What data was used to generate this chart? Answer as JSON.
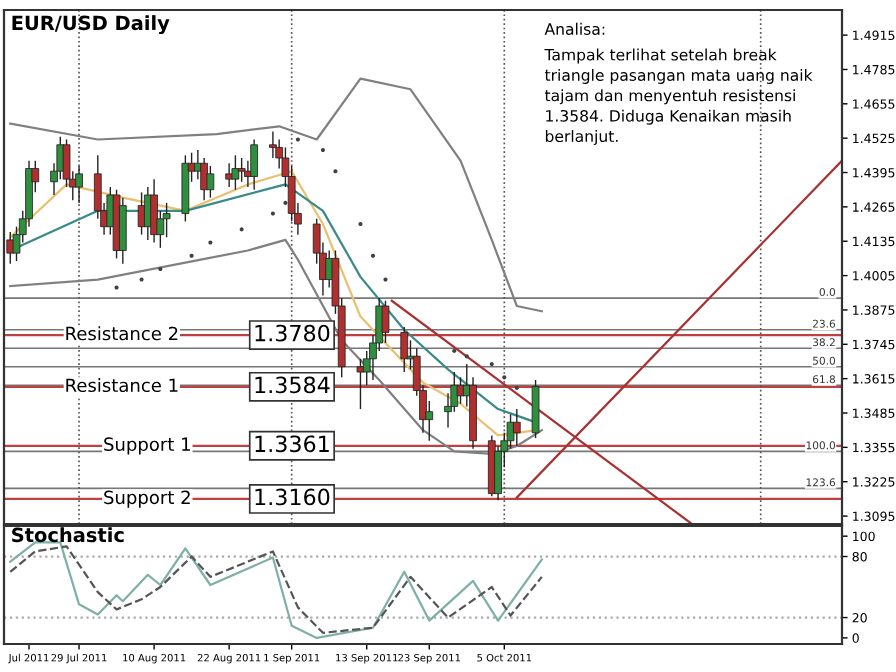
{
  "chart_data": [
    {
      "type": "candlestick",
      "title": "EUR/USD Daily",
      "tick_labels": "y",
      "grid": false,
      "x": [
        "2011-07-18",
        "2011-07-19",
        "2011-07-20",
        "2011-07-21",
        "2011-07-22",
        "2011-07-25",
        "2011-07-26",
        "2011-07-27",
        "2011-07-28",
        "2011-07-29",
        "2011-08-01",
        "2011-08-02",
        "2011-08-03",
        "2011-08-04",
        "2011-08-05",
        "2011-08-08",
        "2011-08-09",
        "2011-08-10",
        "2011-08-11",
        "2011-08-12",
        "2011-08-15",
        "2011-08-16",
        "2011-08-17",
        "2011-08-18",
        "2011-08-19",
        "2011-08-22",
        "2011-08-23",
        "2011-08-24",
        "2011-08-25",
        "2011-08-26",
        "2011-08-29",
        "2011-08-30",
        "2011-08-31",
        "2011-09-01",
        "2011-09-02",
        "2011-09-05",
        "2011-09-06",
        "2011-09-07",
        "2011-09-08",
        "2011-09-09",
        "2011-09-12",
        "2011-09-13",
        "2011-09-14",
        "2011-09-15",
        "2011-09-16",
        "2011-09-19",
        "2011-09-20",
        "2011-09-21",
        "2011-09-22",
        "2011-09-23",
        "2011-09-26",
        "2011-09-27",
        "2011-09-28",
        "2011-09-29",
        "2011-09-30",
        "2011-10-03",
        "2011-10-04",
        "2011-10-05",
        "2011-10-06",
        "2011-10-07",
        "2011-10-10"
      ],
      "ohlc": [
        [
          1.414,
          1.417,
          1.405,
          1.409
        ],
        [
          1.409,
          1.419,
          1.406,
          1.416
        ],
        [
          1.416,
          1.425,
          1.413,
          1.422
        ],
        [
          1.422,
          1.444,
          1.419,
          1.441
        ],
        [
          1.441,
          1.444,
          1.432,
          1.436
        ],
        [
          1.436,
          1.443,
          1.431,
          1.44
        ],
        [
          1.44,
          1.453,
          1.437,
          1.45
        ],
        [
          1.45,
          1.452,
          1.434,
          1.437
        ],
        [
          1.437,
          1.44,
          1.429,
          1.434
        ],
        [
          1.434,
          1.442,
          1.428,
          1.439
        ],
        [
          1.439,
          1.446,
          1.422,
          1.425
        ],
        [
          1.425,
          1.428,
          1.416,
          1.419
        ],
        [
          1.419,
          1.434,
          1.416,
          1.431
        ],
        [
          1.431,
          1.433,
          1.407,
          1.41
        ],
        [
          1.41,
          1.43,
          1.405,
          1.427
        ],
        [
          1.427,
          1.432,
          1.416,
          1.419
        ],
        [
          1.419,
          1.434,
          1.414,
          1.431
        ],
        [
          1.431,
          1.437,
          1.413,
          1.416
        ],
        [
          1.416,
          1.425,
          1.411,
          1.422
        ],
        [
          1.422,
          1.428,
          1.415,
          1.424
        ],
        [
          1.424,
          1.446,
          1.421,
          1.443
        ],
        [
          1.443,
          1.447,
          1.436,
          1.44
        ],
        [
          1.44,
          1.448,
          1.437,
          1.443
        ],
        [
          1.443,
          1.445,
          1.429,
          1.433
        ],
        [
          1.433,
          1.442,
          1.43,
          1.439
        ],
        [
          1.439,
          1.443,
          1.434,
          1.437
        ],
        [
          1.437,
          1.446,
          1.433,
          1.441
        ],
        [
          1.441,
          1.445,
          1.436,
          1.44
        ],
        [
          1.44,
          1.444,
          1.434,
          1.438
        ],
        [
          1.438,
          1.452,
          1.433,
          1.45
        ],
        [
          1.45,
          1.455,
          1.445,
          1.449
        ],
        [
          1.449,
          1.452,
          1.441,
          1.445
        ],
        [
          1.445,
          1.449,
          1.434,
          1.438
        ],
        [
          1.438,
          1.442,
          1.421,
          1.424
        ],
        [
          1.424,
          1.428,
          1.416,
          1.42
        ],
        [
          1.42,
          1.422,
          1.405,
          1.409
        ],
        [
          1.409,
          1.413,
          1.393,
          1.399
        ],
        [
          1.399,
          1.41,
          1.396,
          1.407
        ],
        [
          1.407,
          1.41,
          1.386,
          1.389
        ],
        [
          1.389,
          1.392,
          1.362,
          1.366
        ],
        [
          1.366,
          1.369,
          1.35,
          1.364
        ],
        [
          1.364,
          1.372,
          1.359,
          1.369
        ],
        [
          1.369,
          1.378,
          1.361,
          1.375
        ],
        [
          1.375,
          1.392,
          1.372,
          1.389
        ],
        [
          1.389,
          1.391,
          1.375,
          1.379
        ],
        [
          1.379,
          1.381,
          1.364,
          1.369
        ],
        [
          1.369,
          1.376,
          1.365,
          1.37
        ],
        [
          1.37,
          1.373,
          1.355,
          1.357
        ],
        [
          1.357,
          1.359,
          1.341,
          1.346
        ],
        [
          1.346,
          1.353,
          1.338,
          1.349
        ],
        [
          1.349,
          1.356,
          1.343,
          1.351
        ],
        [
          1.351,
          1.364,
          1.349,
          1.359
        ],
        [
          1.359,
          1.362,
          1.352,
          1.355
        ],
        [
          1.355,
          1.367,
          1.351,
          1.359
        ],
        [
          1.359,
          1.362,
          1.335,
          1.338
        ],
        [
          1.338,
          1.34,
          1.317,
          1.318
        ],
        [
          1.318,
          1.336,
          1.3155,
          1.334
        ],
        [
          1.334,
          1.341,
          1.328,
          1.338
        ],
        [
          1.338,
          1.348,
          1.335,
          1.345
        ],
        [
          1.345,
          1.35,
          1.336,
          1.341
        ],
        [
          1.341,
          1.361,
          1.339,
          1.3585
        ]
      ],
      "colors": [
        "#b03030",
        "#2f8f3f",
        "#2f8f3f",
        "#2f8f3f",
        "#b03030",
        "#2f8f3f",
        "#2f8f3f",
        "#b03030",
        "#b03030",
        "#2f8f3f",
        "#b03030",
        "#b03030",
        "#2f8f3f",
        "#b03030",
        "#2f8f3f",
        "#b03030",
        "#2f8f3f",
        "#b03030",
        "#2f8f3f",
        "#2f8f3f",
        "#2f8f3f",
        "#b03030",
        "#2f8f3f",
        "#b03030",
        "#2f8f3f",
        "#b03030",
        "#2f8f3f",
        "#b03030",
        "#b03030",
        "#2f8f3f",
        "#b03030",
        "#b03030",
        "#b03030",
        "#b03030",
        "#b03030",
        "#b03030",
        "#b03030",
        "#2f8f3f",
        "#b03030",
        "#b03030",
        "#b03030",
        "#2f8f3f",
        "#2f8f3f",
        "#2f8f3f",
        "#b03030",
        "#b03030",
        "#2f8f3f",
        "#b03030",
        "#b03030",
        "#2f8f3f",
        "#2f8f3f",
        "#2f8f3f",
        "#b03030",
        "#2f8f3f",
        "#b03030",
        "#b03030",
        "#2f8f3f",
        "#2f8f3f",
        "#2f8f3f",
        "#b03030",
        "#2f8f3f"
      ],
      "series": [
        {
          "type": "line",
          "color": "#808080",
          "line_style": "solid",
          "x": [
            "2011-07-18",
            "2011-08-01",
            "2011-08-20",
            "2011-08-30",
            "2011-09-05",
            "2011-09-12",
            "2011-09-20",
            "2011-09-28",
            "2011-10-03",
            "2011-10-07",
            "2011-10-11"
          ],
          "values": [
            1.458,
            1.452,
            1.454,
            1.457,
            1.452,
            1.475,
            1.471,
            1.444,
            1.414,
            1.389,
            1.387
          ]
        },
        {
          "type": "line",
          "color": "#808080",
          "line_style": "solid",
          "x": [
            "2011-07-18",
            "2011-08-01",
            "2011-08-25",
            "2011-08-31",
            "2011-09-02",
            "2011-09-09",
            "2011-09-15",
            "2011-09-22",
            "2011-09-27",
            "2011-10-03",
            "2011-10-07",
            "2011-10-11"
          ],
          "values": [
            1.3965,
            1.399,
            1.41,
            1.414,
            1.4065,
            1.376,
            1.361,
            1.342,
            1.334,
            1.333,
            1.336,
            1.342
          ]
        },
        {
          "type": "line",
          "color": "#e8c070",
          "line_style": "solid",
          "x": [
            "2011-07-18",
            "2011-07-27",
            "2011-08-05",
            "2011-08-15",
            "2011-08-25",
            "2011-09-01",
            "2011-09-06",
            "2011-09-12",
            "2011-09-16",
            "2011-09-22",
            "2011-09-28",
            "2011-10-04",
            "2011-10-10"
          ],
          "values": [
            1.415,
            1.435,
            1.43,
            1.425,
            1.435,
            1.44,
            1.42,
            1.385,
            1.375,
            1.36,
            1.352,
            1.34,
            1.342
          ]
        },
        {
          "type": "line",
          "color": "#3a8a8a",
          "line_style": "solid",
          "x": [
            "2011-07-18",
            "2011-08-01",
            "2011-08-15",
            "2011-08-31",
            "2011-09-06",
            "2011-09-12",
            "2011-09-19",
            "2011-09-26",
            "2011-10-04",
            "2011-10-10"
          ],
          "values": [
            1.41,
            1.425,
            1.425,
            1.435,
            1.425,
            1.4,
            1.38,
            1.365,
            1.35,
            1.345
          ]
        },
        {
          "type": "scatter",
          "color": "#404040",
          "marker": "circle",
          "x": [
            "2011-08-04",
            "2011-08-08",
            "2011-08-11",
            "2011-08-16",
            "2011-08-19",
            "2011-08-24",
            "2011-08-29",
            "2011-08-31",
            "2011-09-02",
            "2011-09-06",
            "2011-09-08",
            "2011-09-12",
            "2011-09-14",
            "2011-09-16",
            "2011-09-27",
            "2011-09-29",
            "2011-10-03",
            "2011-10-05",
            "2011-10-07"
          ],
          "values": [
            1.396,
            1.399,
            1.403,
            1.408,
            1.413,
            1.418,
            1.424,
            1.428,
            1.452,
            1.448,
            1.44,
            1.42,
            1.408,
            1.399,
            1.372,
            1.37,
            1.367,
            1.362,
            1.358
          ]
        },
        {
          "type": "line",
          "color": "#a83232",
          "line_style": "solid",
          "x": [
            "2011-09-17",
            "2011-11-04"
          ],
          "values": [
            1.391,
            1.3065
          ]
        },
        {
          "type": "line",
          "color": "#a83232",
          "line_style": "solid",
          "x": [
            "2011-10-07",
            "2011-11-28"
          ],
          "values": [
            1.3165,
            1.444
          ]
        }
      ],
      "xlim": [
        "2011-07-17",
        "2011-11-28"
      ],
      "ylim": [
        1.3065,
        1.501
      ],
      "yticks": [
        1.3095,
        1.3225,
        1.3355,
        1.3485,
        1.3615,
        1.3745,
        1.3875,
        1.4005,
        1.4135,
        1.4265,
        1.4395,
        1.4525,
        1.4655,
        1.4785,
        1.4915
      ],
      "ref_lines": [
        {
          "axis": "y",
          "value": 1.392
        },
        {
          "axis": "y",
          "value": 1.38
        },
        {
          "axis": "y",
          "value": 1.373
        },
        {
          "axis": "y",
          "value": 1.366
        },
        {
          "axis": "y",
          "value": 1.359
        },
        {
          "axis": "y",
          "value": 1.334
        },
        {
          "axis": "y",
          "value": 1.32
        },
        {
          "axis": "y",
          "value": 1.378,
          "label": "1.3780",
          "color": "#c04040"
        },
        {
          "axis": "y",
          "value": 1.3584,
          "label": "1.3584",
          "color": "#c04040"
        },
        {
          "axis": "y",
          "value": 1.3361,
          "label": "1.3361",
          "color": "#c04040"
        },
        {
          "axis": "y",
          "value": 1.316,
          "label": "1.3160",
          "color": "#c04040"
        },
        {
          "axis": "x",
          "value": "2011-07-29",
          "color": "#555555",
          "line_style": "dotted"
        },
        {
          "axis": "x",
          "value": "2011-09-01",
          "color": "#555555",
          "line_style": "dotted"
        },
        {
          "axis": "x",
          "value": "2011-10-05",
          "color": "#555555",
          "line_style": "dotted"
        },
        {
          "axis": "x",
          "value": "2011-11-15",
          "color": "#555555",
          "line_style": "dotted"
        }
      ],
      "annotations": [
        "Analisa:",
        "Tampak terlihat setelah break\ntriangle pasangan mata uang naik\ntajam dan menyentuh resistensi\n1.3584. Diduga Kenaikan masih\nberlanjut.",
        {
          "text": "Resistance 2",
          "x": "2011-08-14",
          "y": 1.378
        },
        {
          "text": "Resistance 1",
          "x": "2011-08-14",
          "y": 1.3584
        },
        {
          "text": "Support 1",
          "x": "2011-08-16",
          "y": 1.3361
        },
        {
          "text": "Support 2",
          "x": "2011-08-16",
          "y": 1.316
        },
        {
          "text": "0.0",
          "x": "2011-11-27",
          "y": 1.392
        },
        {
          "text": "23.6",
          "x": "2011-11-27",
          "y": 1.38
        },
        {
          "text": "38.2",
          "x": "2011-11-27",
          "y": 1.373
        },
        {
          "text": "50.0",
          "x": "2011-11-27",
          "y": 1.366
        },
        {
          "text": "61.8",
          "x": "2011-11-27",
          "y": 1.359
        },
        {
          "text": "100.0",
          "x": "2011-11-27",
          "y": 1.334
        },
        {
          "text": "123.6",
          "x": "2011-11-27",
          "y": 1.32
        }
      ]
    },
    {
      "type": "line",
      "title": "Stochastic",
      "grid": false,
      "series": [
        {
          "color": "#7fb0a8",
          "line_style": "solid",
          "x": [
            "2011-07-18",
            "2011-07-22",
            "2011-07-26",
            "2011-07-29",
            "2011-08-01",
            "2011-08-04",
            "2011-08-05",
            "2011-08-09",
            "2011-08-11",
            "2011-08-15",
            "2011-08-19",
            "2011-08-29",
            "2011-09-01",
            "2011-09-05",
            "2011-09-14",
            "2011-09-19",
            "2011-09-23",
            "2011-09-30",
            "2011-10-04",
            "2011-10-11"
          ],
          "values": [
            75,
            94,
            94,
            33,
            23,
            42,
            36,
            62,
            52,
            88,
            52,
            79,
            12,
            0,
            10,
            65,
            17,
            56,
            17,
            77
          ]
        },
        {
          "color": "#555555",
          "line_style": "dashed",
          "x": [
            "2011-07-18",
            "2011-07-22",
            "2011-07-27",
            "2011-08-01",
            "2011-08-04",
            "2011-08-08",
            "2011-08-11",
            "2011-08-16",
            "2011-08-19",
            "2011-08-29",
            "2011-09-02",
            "2011-09-06",
            "2011-09-14",
            "2011-09-20",
            "2011-09-26",
            "2011-10-03",
            "2011-10-06",
            "2011-10-11"
          ],
          "values": [
            65,
            85,
            90,
            45,
            28,
            38,
            50,
            80,
            60,
            85,
            30,
            5,
            10,
            60,
            20,
            50,
            22,
            60
          ]
        }
      ],
      "xlim": [
        "2011-07-17",
        "2011-11-28"
      ],
      "ylim": [
        -6,
        110
      ],
      "yticks": [
        0,
        20,
        80,
        100
      ],
      "xticks": [
        {
          "value": "2011-07-21",
          "label": "Jul 2011"
        },
        {
          "value": "2011-07-29",
          "label": "29 Jul 2011"
        },
        {
          "value": "2011-08-10",
          "label": "10 Aug 2011"
        },
        {
          "value": "2011-08-22",
          "label": "22 Aug 2011"
        },
        {
          "value": "2011-09-01",
          "label": "1 Sep 2011"
        },
        {
          "value": "2011-09-13",
          "label": "13 Sep 2011"
        },
        {
          "value": "2011-09-23",
          "label": "23 Sep 2011"
        },
        {
          "value": "2011-10-05",
          "label": "5 Oct 2011"
        }
      ],
      "ref_lines": [
        {
          "axis": "y",
          "value": 20,
          "color": "#aaaaaa",
          "line_style": "dotted"
        },
        {
          "axis": "y",
          "value": 80,
          "color": "#aaaaaa",
          "line_style": "dotted"
        }
      ]
    }
  ]
}
